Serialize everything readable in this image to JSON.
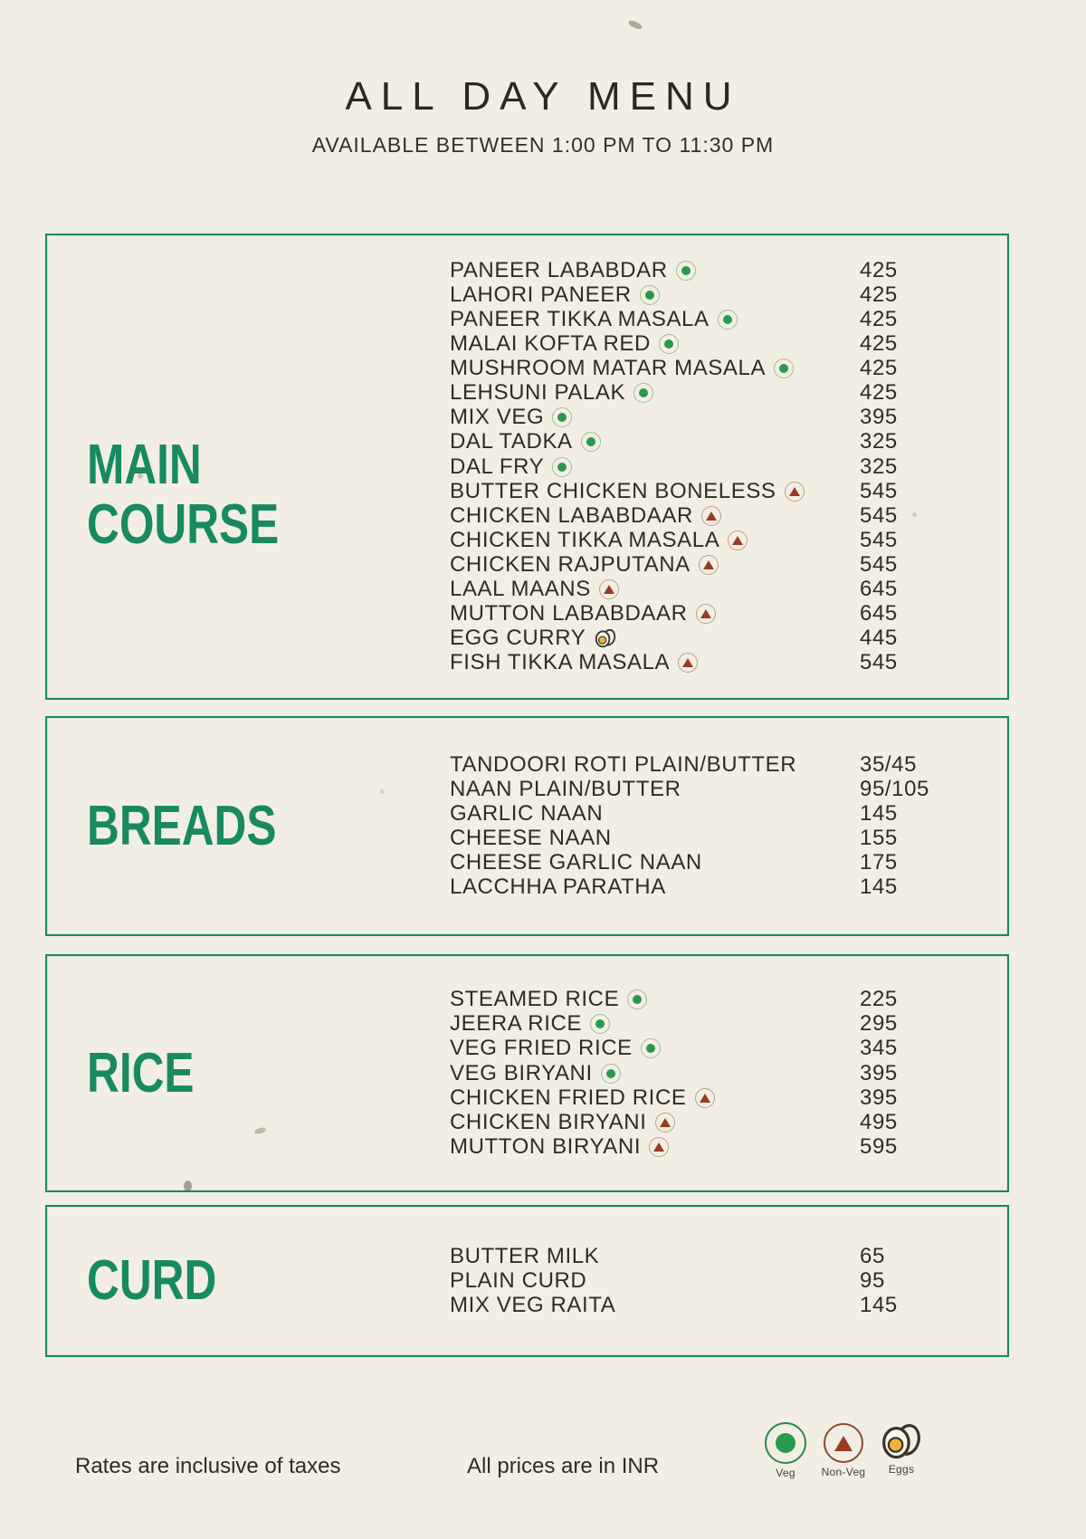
{
  "page": {
    "title": "ALL DAY MENU",
    "subtitle": "AVAILABLE BETWEEN 1:00 PM TO 11:30 PM"
  },
  "colors": {
    "accent_green": "#178a60",
    "veg_green": "#28994d",
    "nonveg_red": "#9c3a20",
    "egg_yellow": "#eab637",
    "paper": "#f3eee3",
    "text": "#2b2925"
  },
  "sections": [
    {
      "title": "MAIN COURSE",
      "title_lines": [
        "MAIN",
        "COURSE"
      ],
      "items": [
        {
          "name": "PANEER LABABDAR",
          "marker": "veg",
          "price": "425"
        },
        {
          "name": "LAHORI PANEER",
          "marker": "veg",
          "price": "425"
        },
        {
          "name": "PANEER TIKKA MASALA",
          "marker": "veg",
          "price": "425"
        },
        {
          "name": "MALAI KOFTA RED",
          "marker": "veg",
          "price": "425"
        },
        {
          "name": "MUSHROOM MATAR MASALA",
          "marker": "veg",
          "price": "425"
        },
        {
          "name": "LEHSUNI PALAK",
          "marker": "veg",
          "price": "425"
        },
        {
          "name": "MIX VEG",
          "marker": "veg",
          "price": "395"
        },
        {
          "name": "DAL TADKA",
          "marker": "veg",
          "price": "325"
        },
        {
          "name": "DAL FRY",
          "marker": "veg",
          "price": "325"
        },
        {
          "name": "BUTTER CHICKEN BONELESS",
          "marker": "nonveg",
          "price": "545"
        },
        {
          "name": "CHICKEN LABABDAAR",
          "marker": "nonveg",
          "price": "545"
        },
        {
          "name": "CHICKEN TIKKA MASALA",
          "marker": "nonveg",
          "price": "545"
        },
        {
          "name": "CHICKEN RAJPUTANA",
          "marker": "nonveg",
          "price": "545"
        },
        {
          "name": "LAAL MAANS",
          "marker": "nonveg",
          "price": "645"
        },
        {
          "name": "MUTTON LABABDAAR",
          "marker": "nonveg",
          "price": "645"
        },
        {
          "name": "EGG CURRY",
          "marker": "egg",
          "price": "445"
        },
        {
          "name": "FISH TIKKA MASALA",
          "marker": "nonveg",
          "price": "545"
        }
      ]
    },
    {
      "title": "BREADS",
      "items": [
        {
          "name": "TANDOORI ROTI PLAIN/BUTTER",
          "marker": null,
          "price": "35/45"
        },
        {
          "name": "NAAN PLAIN/BUTTER",
          "marker": null,
          "price": "95/105"
        },
        {
          "name": "GARLIC NAAN",
          "marker": null,
          "price": "145"
        },
        {
          "name": "CHEESE NAAN",
          "marker": null,
          "price": "155"
        },
        {
          "name": "CHEESE GARLIC NAAN",
          "marker": null,
          "price": "175"
        },
        {
          "name": "LACCHHA PARATHA",
          "marker": null,
          "price": "145"
        }
      ]
    },
    {
      "title": "RICE",
      "items": [
        {
          "name": "STEAMED RICE",
          "marker": "veg",
          "price": "225"
        },
        {
          "name": "JEERA RICE",
          "marker": "veg",
          "price": "295"
        },
        {
          "name": "VEG FRIED RICE",
          "marker": "veg",
          "price": "345"
        },
        {
          "name": "VEG BIRYANI",
          "marker": "veg",
          "price": "395"
        },
        {
          "name": "CHICKEN FRIED RICE",
          "marker": "nonveg",
          "price": "395"
        },
        {
          "name": "CHICKEN BIRYANI",
          "marker": "nonveg",
          "price": "495"
        },
        {
          "name": "MUTTON BIRYANI",
          "marker": "nonveg",
          "price": "595"
        }
      ]
    },
    {
      "title": "CURD",
      "items": [
        {
          "name": "BUTTER MILK",
          "marker": null,
          "price": "65"
        },
        {
          "name": "PLAIN CURD",
          "marker": null,
          "price": "95"
        },
        {
          "name": "MIX VEG RAITA",
          "marker": null,
          "price": "145"
        }
      ]
    }
  ],
  "footer": {
    "note_left": "Rates are inclusive of taxes",
    "note_right": "All prices are in INR",
    "legend": [
      {
        "label": "Veg",
        "type": "veg"
      },
      {
        "label": "Non-Veg",
        "type": "nonveg"
      },
      {
        "label": "Eggs",
        "type": "egg"
      }
    ]
  }
}
